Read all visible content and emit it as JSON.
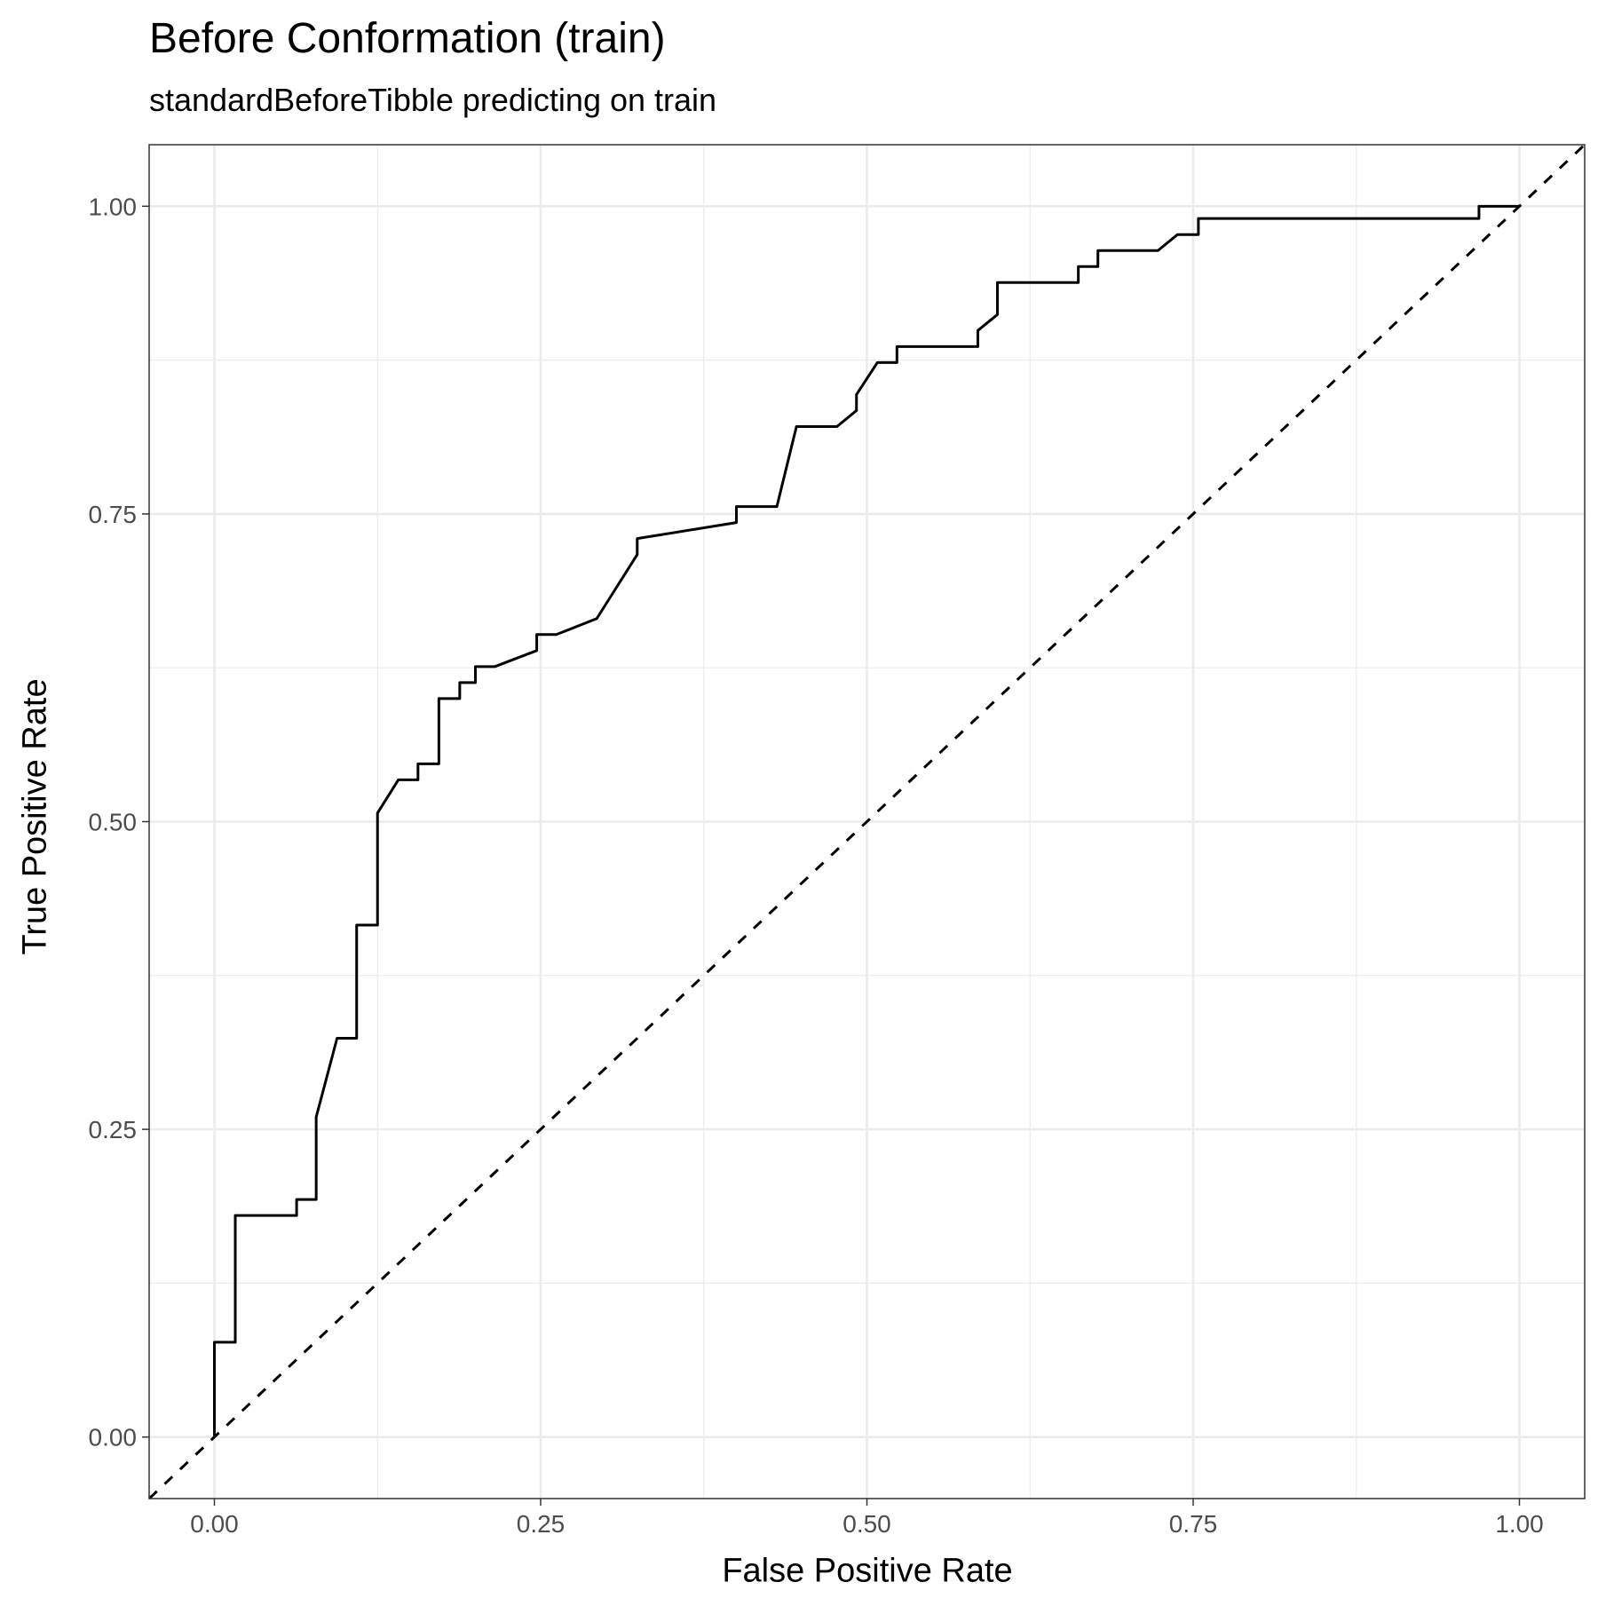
{
  "chart_data": {
    "type": "line",
    "title": "Before Conformation (train)",
    "subtitle": "standardBeforeTibble predicting on train",
    "xlabel": "False Positive Rate",
    "ylabel": "True Positive Rate",
    "xlim": [
      -0.05,
      1.05
    ],
    "ylim": [
      -0.05,
      1.05
    ],
    "x_ticks": [
      "0.00",
      "0.25",
      "0.50",
      "0.75",
      "1.00"
    ],
    "y_ticks": [
      "0.00",
      "0.25",
      "0.50",
      "0.75",
      "1.00"
    ],
    "grid": true,
    "series": [
      {
        "line_style": "solid",
        "color": "#000000",
        "x": [
          0.0,
          0.0,
          0.016,
          0.016,
          0.063,
          0.063,
          0.078,
          0.078,
          0.094,
          0.109,
          0.109,
          0.125,
          0.125,
          0.141,
          0.156,
          0.156,
          0.172,
          0.172,
          0.188,
          0.188,
          0.2,
          0.2,
          0.215,
          0.247,
          0.247,
          0.262,
          0.293,
          0.324,
          0.324,
          0.4,
          0.4,
          0.431,
          0.446,
          0.446,
          0.477,
          0.492,
          0.492,
          0.508,
          0.523,
          0.523,
          0.554,
          0.585,
          0.585,
          0.6,
          0.6,
          0.662,
          0.662,
          0.677,
          0.677,
          0.723,
          0.738,
          0.754,
          0.754,
          0.969,
          0.969,
          1.0
        ],
        "y": [
          0.0,
          0.077,
          0.077,
          0.18,
          0.18,
          0.193,
          0.193,
          0.26,
          0.324,
          0.324,
          0.416,
          0.416,
          0.507,
          0.534,
          0.534,
          0.547,
          0.547,
          0.6,
          0.6,
          0.613,
          0.613,
          0.626,
          0.626,
          0.639,
          0.652,
          0.652,
          0.665,
          0.717,
          0.73,
          0.743,
          0.756,
          0.756,
          0.821,
          0.821,
          0.821,
          0.834,
          0.847,
          0.873,
          0.873,
          0.886,
          0.886,
          0.886,
          0.899,
          0.912,
          0.938,
          0.938,
          0.951,
          0.951,
          0.964,
          0.964,
          0.977,
          0.977,
          0.99,
          0.99,
          1.0,
          1.0
        ]
      },
      {
        "line_style": "dashed",
        "color": "#000000",
        "x": [
          -0.05,
          1.05
        ],
        "y": [
          -0.05,
          1.05
        ]
      }
    ]
  }
}
